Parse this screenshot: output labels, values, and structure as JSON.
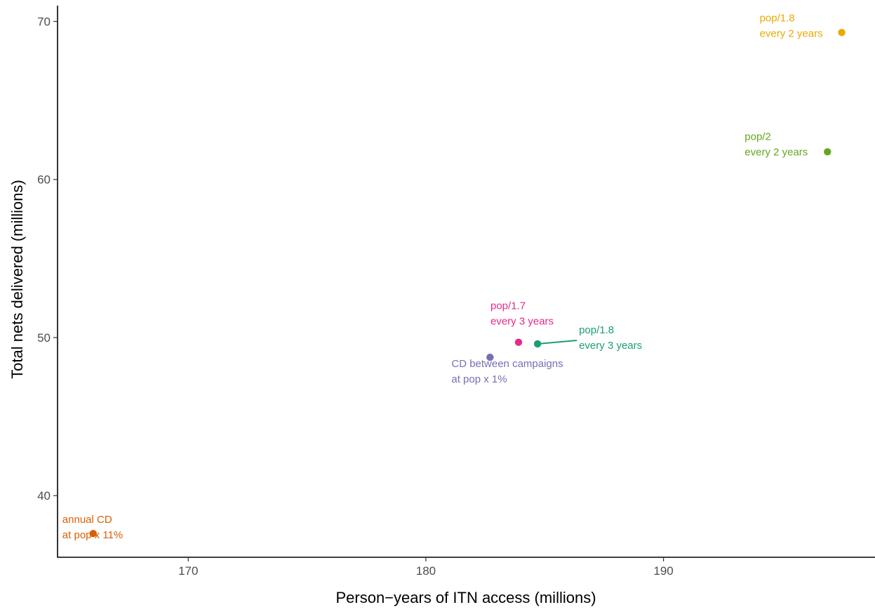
{
  "chart_data": {
    "type": "scatter",
    "xlabel": "Person−years of ITN access (millions)",
    "ylabel": "Total nets delivered (millions)",
    "xlim": [
      164.5,
      198.9
    ],
    "ylim": [
      36.1,
      71.0
    ],
    "xticks": [
      170,
      180,
      190
    ],
    "yticks": [
      40,
      50,
      60,
      70
    ],
    "grid": false,
    "legend": "none",
    "points": [
      {
        "id": "annual-cd",
        "x": 166.0,
        "y": 37.6,
        "color": "#D95F02",
        "label": [
          "annual CD",
          "at pop x 11%"
        ]
      },
      {
        "id": "cd-between-campaigns",
        "x": 182.7,
        "y": 48.75,
        "color": "#7570B3",
        "label": [
          "CD between campaigns",
          "at pop x 1%"
        ]
      },
      {
        "id": "pop17-every3",
        "x": 183.9,
        "y": 49.7,
        "color": "#E7298A",
        "label": [
          "pop/1.7",
          "every 3 years"
        ]
      },
      {
        "id": "pop18-every3",
        "x": 184.7,
        "y": 49.6,
        "color": "#1B9E77",
        "label": [
          "pop/1.8",
          "every 3 years"
        ]
      },
      {
        "id": "pop2-every2",
        "x": 196.9,
        "y": 61.75,
        "color": "#66A61E",
        "label": [
          "pop/2",
          "every 2 years"
        ]
      },
      {
        "id": "pop18-every2",
        "x": 197.5,
        "y": 69.3,
        "color": "#E6AB02",
        "label": [
          "pop/1.8",
          "every 2 years"
        ]
      }
    ]
  }
}
